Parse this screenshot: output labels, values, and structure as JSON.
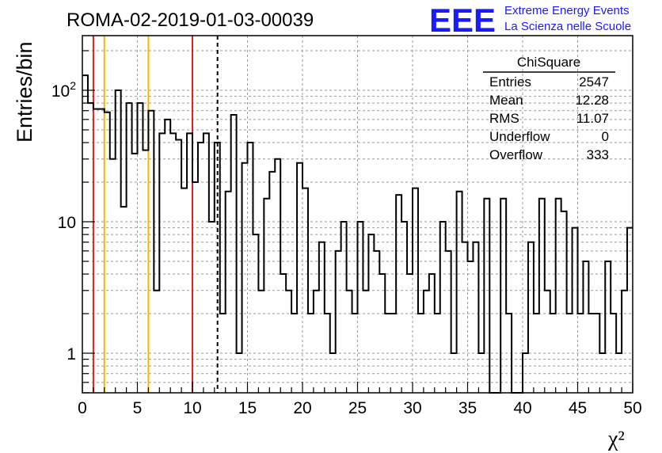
{
  "title": "ROMA-02-2019-01-03-00039",
  "logo": {
    "mark": "EEE",
    "line1": "Extreme Energy Events",
    "line2": "La Scienza nelle Scuole",
    "color": "#1a1aff"
  },
  "stats": {
    "name": "ChiSquare",
    "rows": [
      {
        "label": "Entries",
        "value": "2547"
      },
      {
        "label": "Mean",
        "value": "12.28"
      },
      {
        "label": "RMS",
        "value": "11.07"
      },
      {
        "label": "Underflow",
        "value": "0"
      },
      {
        "label": "Overflow",
        "value": "333"
      }
    ]
  },
  "chart_data": {
    "type": "histogram",
    "title": "ROMA-02-2019-01-03-00039",
    "xlabel": "χ²",
    "ylabel": "Entries/bin",
    "xlim": [
      0,
      50
    ],
    "ylim": [
      0.5,
      250
    ],
    "yscale": "log",
    "grid": true,
    "bin_width": 0.5,
    "x_ticks": [
      0,
      5,
      10,
      15,
      20,
      25,
      30,
      35,
      40,
      45,
      50
    ],
    "y_ticks": [
      {
        "value": 1,
        "label": "1"
      },
      {
        "value": 10,
        "label": "10"
      },
      {
        "value": 100,
        "label": "10²"
      }
    ],
    "values": [
      130,
      80,
      72,
      72,
      68,
      30,
      100,
      13,
      80,
      33,
      80,
      35,
      70,
      3,
      47,
      60,
      47,
      42,
      18,
      47,
      20,
      40,
      47,
      10,
      40,
      2,
      17,
      65,
      1,
      28,
      40,
      8,
      3,
      15,
      24,
      30,
      4,
      3,
      2,
      28,
      18,
      2,
      3,
      7,
      2,
      1,
      6,
      10,
      3,
      2,
      10,
      3,
      8,
      6,
      4,
      2,
      2,
      16,
      10,
      4,
      18,
      2,
      3,
      4,
      2,
      10,
      6,
      1,
      17,
      7,
      5,
      7,
      1,
      15,
      0.5,
      0.5,
      15,
      2,
      0.5,
      0.5,
      1,
      7,
      2,
      15,
      3,
      2,
      15,
      12,
      2,
      9,
      2,
      5,
      2,
      2,
      1,
      5,
      2,
      1,
      3,
      9
    ],
    "vertical_lines": [
      {
        "x": 1.0,
        "color": "#e0201b",
        "style": "solid"
      },
      {
        "x": 2.0,
        "color": "#f5b800",
        "style": "solid"
      },
      {
        "x": 6.0,
        "color": "#f5b800",
        "style": "solid"
      },
      {
        "x": 10.0,
        "color": "#e0201b",
        "style": "solid"
      },
      {
        "x": 12.28,
        "color": "#000000",
        "style": "dashed"
      }
    ]
  }
}
